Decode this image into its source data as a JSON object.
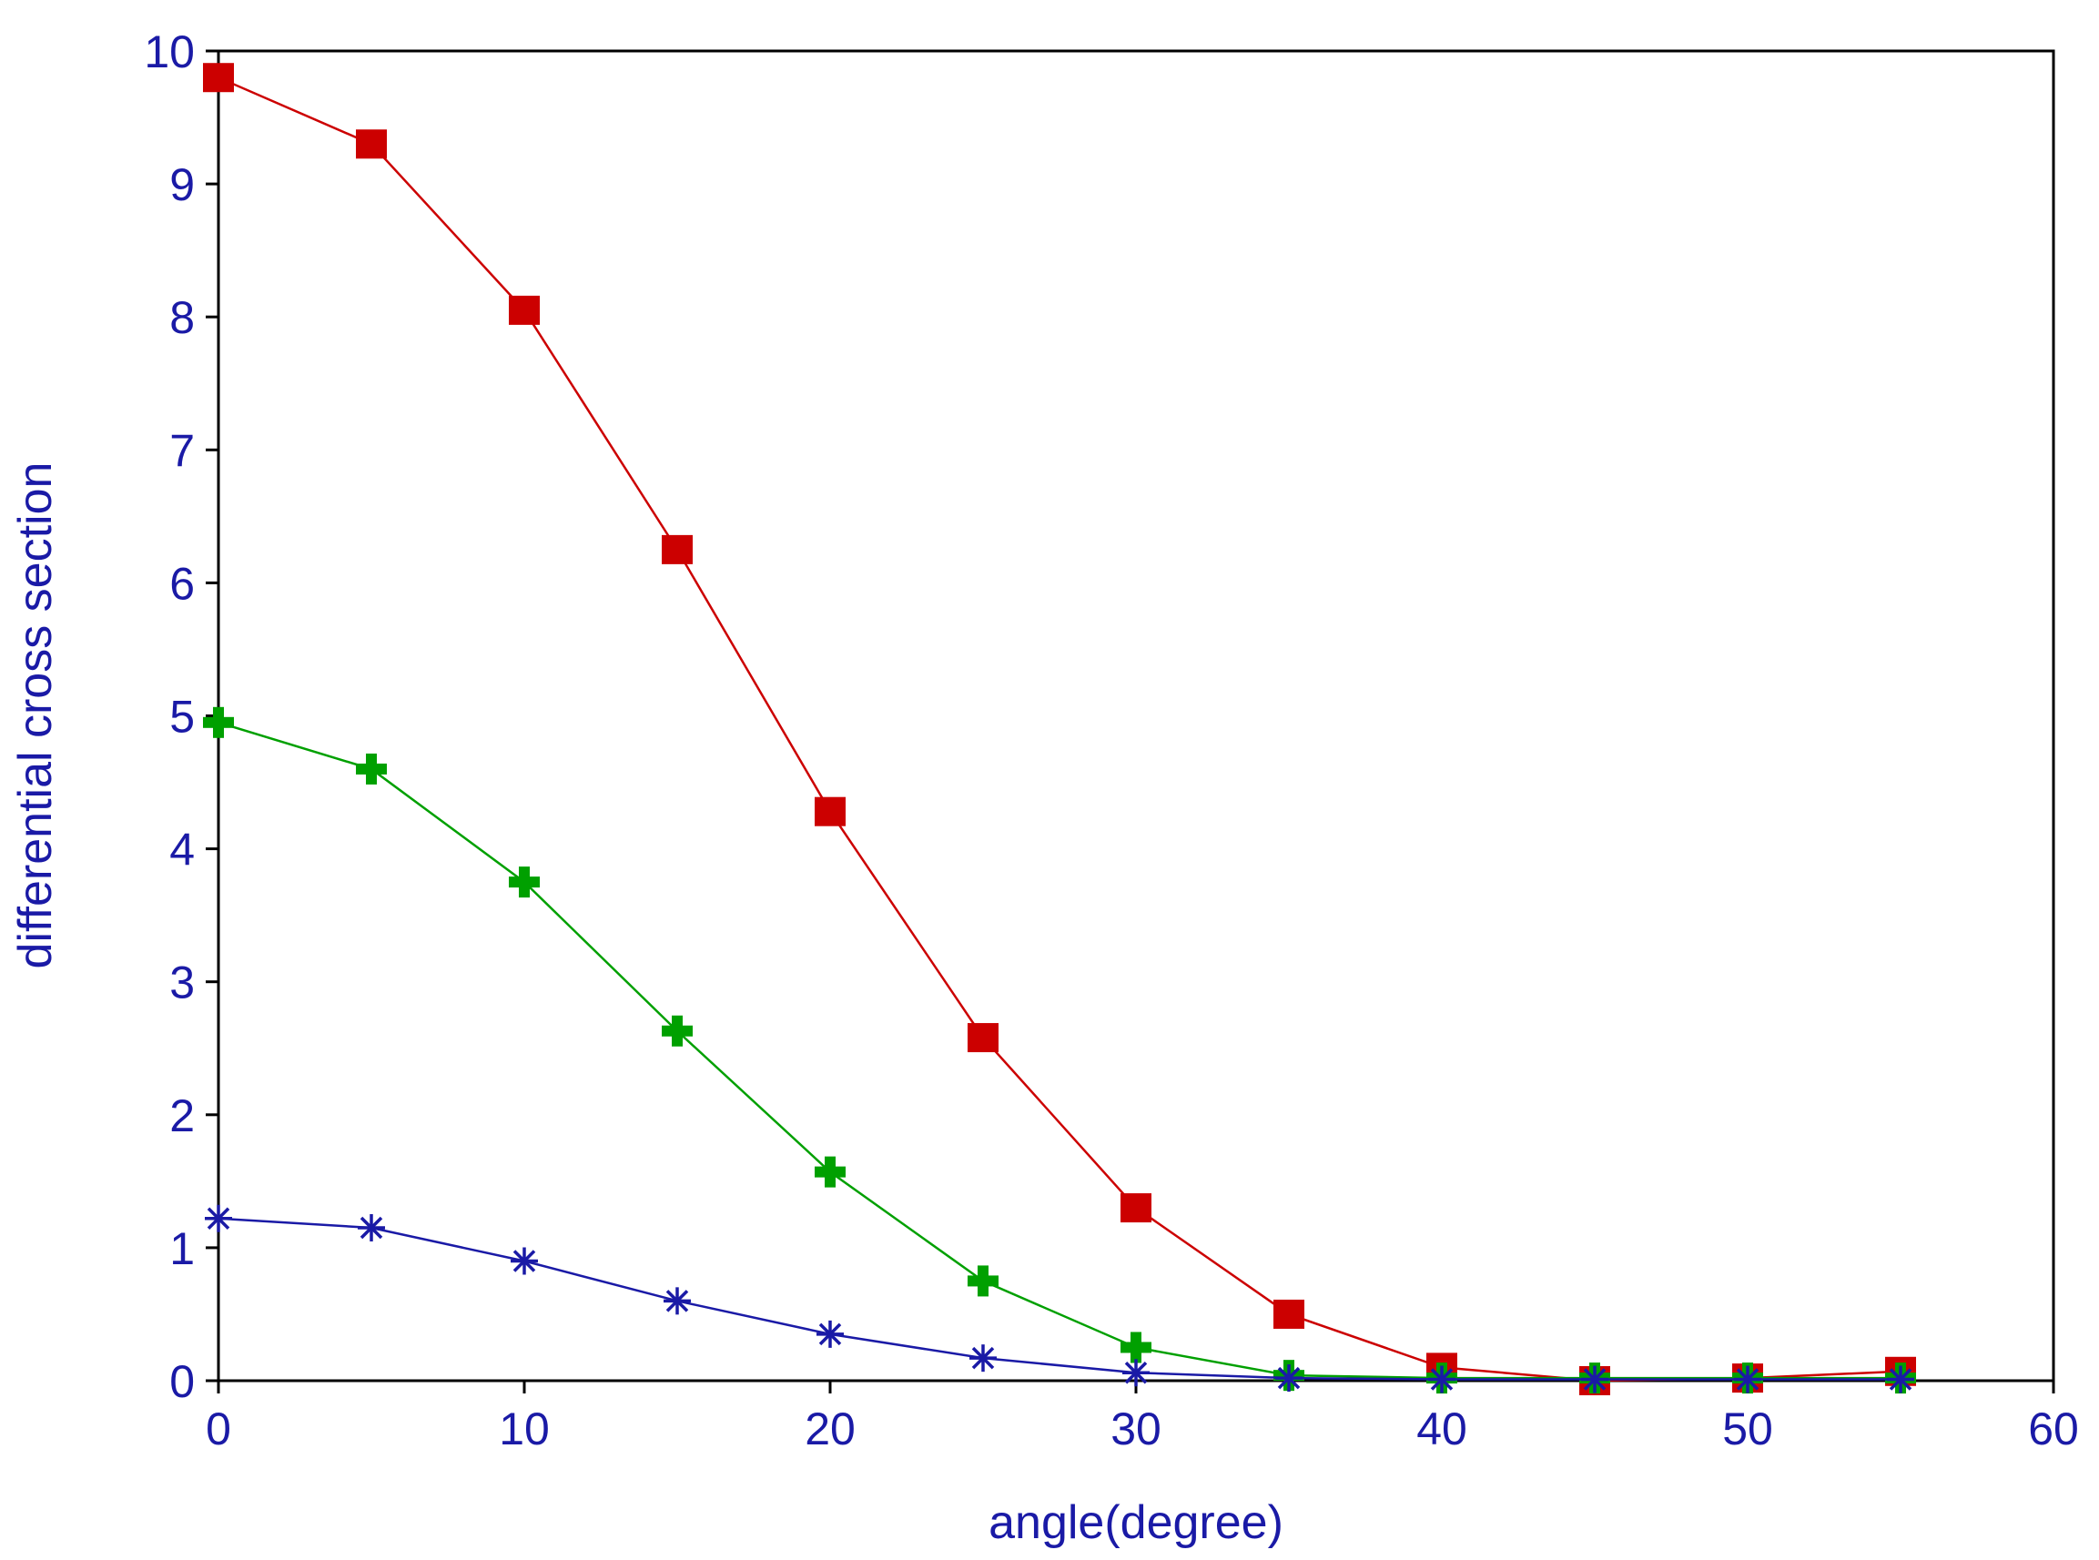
{
  "chart_data": {
    "type": "line",
    "title": "",
    "xlabel": "angle(degree)",
    "ylabel": "differential cross section",
    "xlim": [
      0,
      60
    ],
    "ylim": [
      0,
      10
    ],
    "grid": false,
    "legend": "none",
    "x": [
      0,
      5,
      10,
      15,
      20,
      25,
      30,
      35,
      40,
      45,
      50,
      55
    ],
    "xticks": [
      0,
      10,
      20,
      30,
      40,
      50,
      60
    ],
    "yticks": [
      0,
      1,
      2,
      3,
      4,
      5,
      6,
      7,
      8,
      9,
      10
    ],
    "series": [
      {
        "name": "red-squares",
        "color": "#cc0000",
        "marker": "square",
        "values": [
          9.8,
          9.3,
          8.05,
          6.25,
          4.28,
          2.58,
          1.3,
          0.5,
          0.1,
          0.0,
          0.02,
          0.07
        ]
      },
      {
        "name": "green-crosses",
        "color": "#00a000",
        "marker": "plus",
        "values": [
          4.95,
          4.6,
          3.75,
          2.63,
          1.57,
          0.75,
          0.25,
          0.04,
          0.02,
          0.02,
          0.02,
          0.02
        ]
      },
      {
        "name": "blue-stars",
        "color": "#1a1aa6",
        "marker": "asterisk",
        "values": [
          1.22,
          1.15,
          0.9,
          0.6,
          0.35,
          0.17,
          0.06,
          0.02,
          0.01,
          0.01,
          0.01,
          0.01
        ]
      }
    ]
  }
}
